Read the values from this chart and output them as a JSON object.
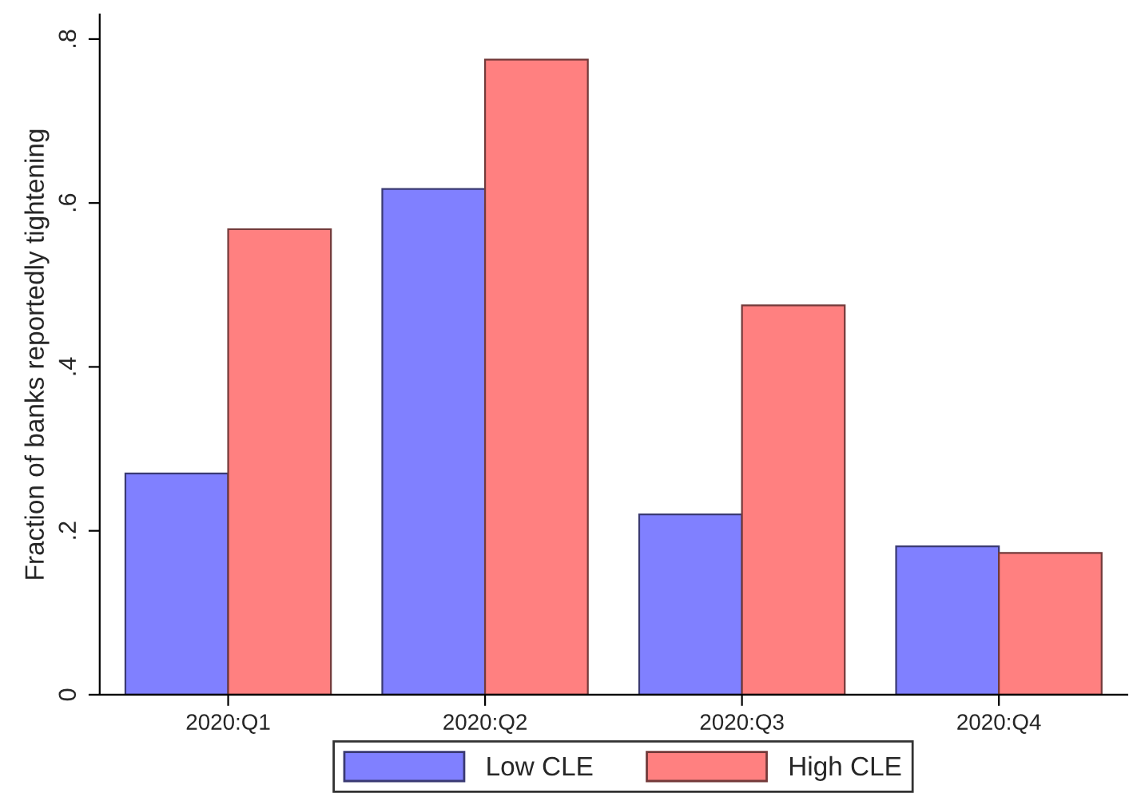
{
  "chart_data": {
    "type": "bar",
    "ylabel": "Fraction of banks reportedly tightening",
    "categories": [
      "2020:Q1",
      "2020:Q2",
      "2020:Q3",
      "2020:Q4"
    ],
    "series": [
      {
        "name": "Low CLE",
        "color": "#8080ff",
        "values": [
          0.27,
          0.617,
          0.22,
          0.181
        ]
      },
      {
        "name": "High CLE",
        "color": "#ff8080",
        "values": [
          0.568,
          0.775,
          0.475,
          0.173
        ]
      }
    ],
    "ylim": [
      0,
      0.83
    ],
    "yticks": [
      0,
      {
        "value": 0.2,
        "label": ".2"
      },
      {
        "value": 0.4,
        "label": ".4"
      },
      {
        "value": 0.6,
        "label": ".6"
      },
      {
        "value": 0.8,
        "label": ".8"
      }
    ],
    "grid": false,
    "legend": "bottom"
  }
}
